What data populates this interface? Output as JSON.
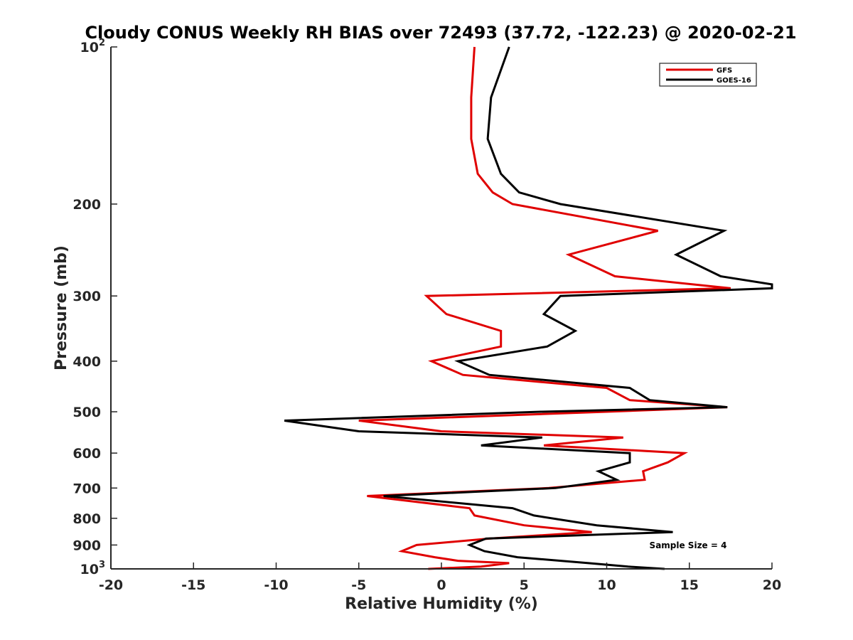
{
  "chart_data": {
    "type": "line",
    "title": "Cloudy CONUS Weekly RH BIAS over 72493 (37.72, -122.23) @ 2020-02-21",
    "xlabel": "Relative Humidity (%)",
    "ylabel": "Pressure (mb)",
    "xlim": [
      -20,
      20
    ],
    "ylim": [
      100,
      1000
    ],
    "y_scale": "log",
    "y_reversed": true,
    "grid": false,
    "legend_position": "top-right",
    "x_ticks": [
      "-20",
      "-15",
      "-10",
      "-5",
      "0",
      "5",
      "10",
      "15",
      "20"
    ],
    "y_ticks": [
      {
        "value": 100,
        "base": "10",
        "exp": "2"
      },
      {
        "value": 200,
        "label": "200"
      },
      {
        "value": 300,
        "label": "300"
      },
      {
        "value": 400,
        "label": "400"
      },
      {
        "value": 500,
        "label": "500"
      },
      {
        "value": 600,
        "label": "600"
      },
      {
        "value": 700,
        "label": "700"
      },
      {
        "value": 800,
        "label": "800"
      },
      {
        "value": 900,
        "label": "900"
      },
      {
        "value": 1000,
        "base": "10",
        "exp": "3"
      }
    ],
    "annotation": "Sample Size = 4",
    "series": [
      {
        "name": "GFS",
        "color": "#e00000",
        "points": [
          [
            2.0,
            100
          ],
          [
            1.8,
            125
          ],
          [
            1.8,
            150
          ],
          [
            2.2,
            175
          ],
          [
            3.1,
            190
          ],
          [
            4.3,
            200
          ],
          [
            13.1,
            225
          ],
          [
            7.7,
            250
          ],
          [
            10.5,
            275
          ],
          [
            17.5,
            290
          ],
          [
            -0.9,
            300
          ],
          [
            0.3,
            325
          ],
          [
            3.6,
            350
          ],
          [
            3.6,
            375
          ],
          [
            -0.6,
            400
          ],
          [
            1.3,
            425
          ],
          [
            10.0,
            450
          ],
          [
            11.4,
            475
          ],
          [
            17.3,
            490
          ],
          [
            10.0,
            500
          ],
          [
            -5.0,
            520
          ],
          [
            0.0,
            545
          ],
          [
            11.0,
            560
          ],
          [
            6.2,
            580
          ],
          [
            14.7,
            600
          ],
          [
            13.7,
            625
          ],
          [
            12.2,
            650
          ],
          [
            12.3,
            675
          ],
          [
            6.5,
            700
          ],
          [
            -4.5,
            725
          ],
          [
            1.7,
            765
          ],
          [
            2.0,
            790
          ],
          [
            5.0,
            825
          ],
          [
            9.1,
            850
          ],
          [
            2.9,
            875
          ],
          [
            -1.5,
            900
          ],
          [
            -2.4,
            925
          ],
          [
            -0.4,
            950
          ],
          [
            1.0,
            965
          ],
          [
            4.1,
            975
          ],
          [
            2.4,
            990
          ],
          [
            -0.8,
            1000
          ]
        ]
      },
      {
        "name": "GOES-16",
        "color": "#000000",
        "points": [
          [
            4.1,
            100
          ],
          [
            3.0,
            125
          ],
          [
            2.8,
            150
          ],
          [
            3.6,
            175
          ],
          [
            4.7,
            190
          ],
          [
            7.2,
            200
          ],
          [
            17.1,
            225
          ],
          [
            14.2,
            250
          ],
          [
            16.9,
            275
          ],
          [
            20.0,
            285
          ],
          [
            20.0,
            290
          ],
          [
            7.2,
            300
          ],
          [
            6.2,
            325
          ],
          [
            8.1,
            350
          ],
          [
            6.4,
            375
          ],
          [
            1.0,
            400
          ],
          [
            2.9,
            425
          ],
          [
            11.4,
            450
          ],
          [
            12.6,
            475
          ],
          [
            17.3,
            490
          ],
          [
            6.0,
            500
          ],
          [
            -9.5,
            520
          ],
          [
            -5.0,
            545
          ],
          [
            6.1,
            560
          ],
          [
            2.4,
            580
          ],
          [
            11.4,
            600
          ],
          [
            11.4,
            625
          ],
          [
            9.5,
            650
          ],
          [
            10.6,
            675
          ],
          [
            6.9,
            700
          ],
          [
            -3.5,
            725
          ],
          [
            4.3,
            765
          ],
          [
            5.6,
            790
          ],
          [
            9.4,
            825
          ],
          [
            14.0,
            850
          ],
          [
            2.7,
            875
          ],
          [
            1.7,
            900
          ],
          [
            2.6,
            925
          ],
          [
            4.6,
            950
          ],
          [
            8.9,
            975
          ],
          [
            11.3,
            990
          ],
          [
            13.5,
            1000
          ]
        ]
      }
    ]
  }
}
